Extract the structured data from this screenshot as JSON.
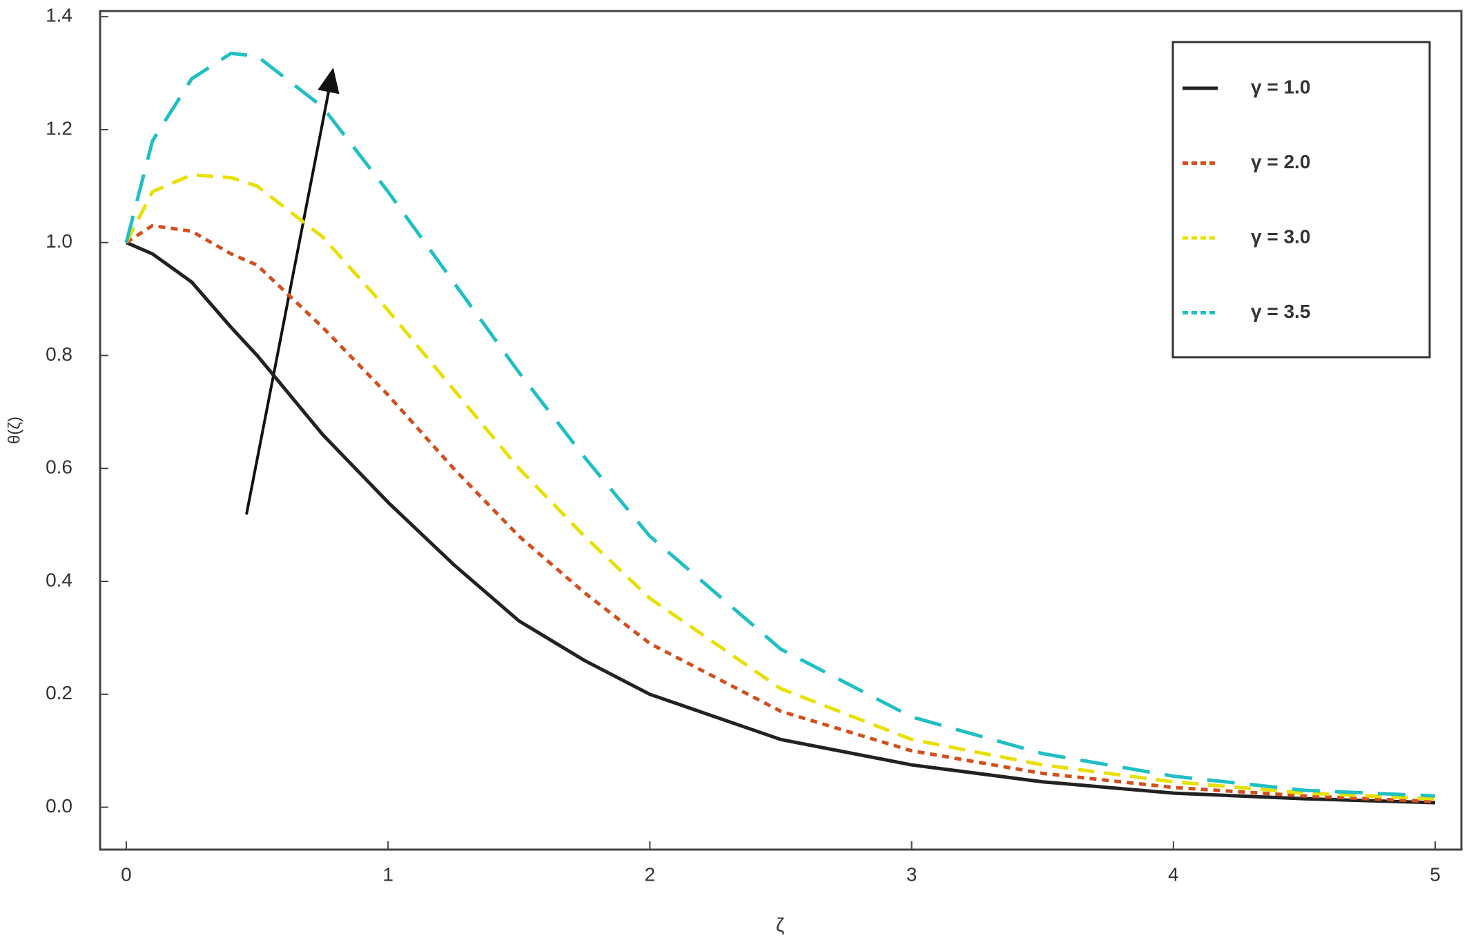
{
  "chart_data": {
    "type": "line",
    "x_label": "ζ",
    "y_label": "θ(ζ)",
    "x": [
      0,
      0.1,
      0.25,
      0.4,
      0.5,
      0.75,
      1,
      1.25,
      1.5,
      1.75,
      2,
      2.5,
      3,
      3.5,
      4,
      4.5,
      5
    ],
    "series": [
      {
        "name": "γ = 1.0",
        "color": "#222222",
        "dash": "solid",
        "values": [
          1,
          0.98,
          0.93,
          0.85,
          0.8,
          0.66,
          0.54,
          0.43,
          0.33,
          0.26,
          0.2,
          0.12,
          0.075,
          0.045,
          0.025,
          0.015,
          0.008
        ]
      },
      {
        "name": "γ = 2.0",
        "color": "#d2501e",
        "dash": "dotted",
        "values": [
          1,
          1.03,
          1.02,
          0.98,
          0.96,
          0.85,
          0.73,
          0.6,
          0.48,
          0.38,
          0.29,
          0.17,
          0.1,
          0.06,
          0.035,
          0.02,
          0.01
        ]
      },
      {
        "name": "γ = 3.0",
        "color": "#e8e000",
        "dash": "dashed",
        "values": [
          1,
          1.09,
          1.12,
          1.115,
          1.1,
          1.01,
          0.88,
          0.74,
          0.6,
          0.48,
          0.37,
          0.21,
          0.12,
          0.075,
          0.045,
          0.025,
          0.015
        ]
      },
      {
        "name": "γ = 3.5",
        "color": "#1fbfc4",
        "dash": "longdash",
        "values": [
          1,
          1.18,
          1.29,
          1.335,
          1.33,
          1.24,
          1.09,
          0.93,
          0.77,
          0.62,
          0.48,
          0.28,
          0.16,
          0.095,
          0.055,
          0.03,
          0.02
        ]
      }
    ],
    "xlim": [
      -0.1,
      5.1
    ],
    "ylim": [
      -0.075,
      1.41
    ],
    "xticks": [
      0,
      1,
      2,
      3,
      4,
      5
    ],
    "yticks": [
      {
        "value": 0,
        "label": "0.0"
      },
      {
        "value": 0.2,
        "label": "0.2"
      },
      {
        "value": 0.4,
        "label": "0.4"
      },
      {
        "value": 0.6,
        "label": "0.6"
      },
      {
        "value": 0.8,
        "label": "0.8"
      },
      {
        "value": 1,
        "label": "1.0"
      },
      {
        "value": 1.2,
        "label": "1.2"
      },
      {
        "value": 1.4,
        "label": "1.4"
      }
    ],
    "grid": false,
    "legend": "upper right"
  }
}
